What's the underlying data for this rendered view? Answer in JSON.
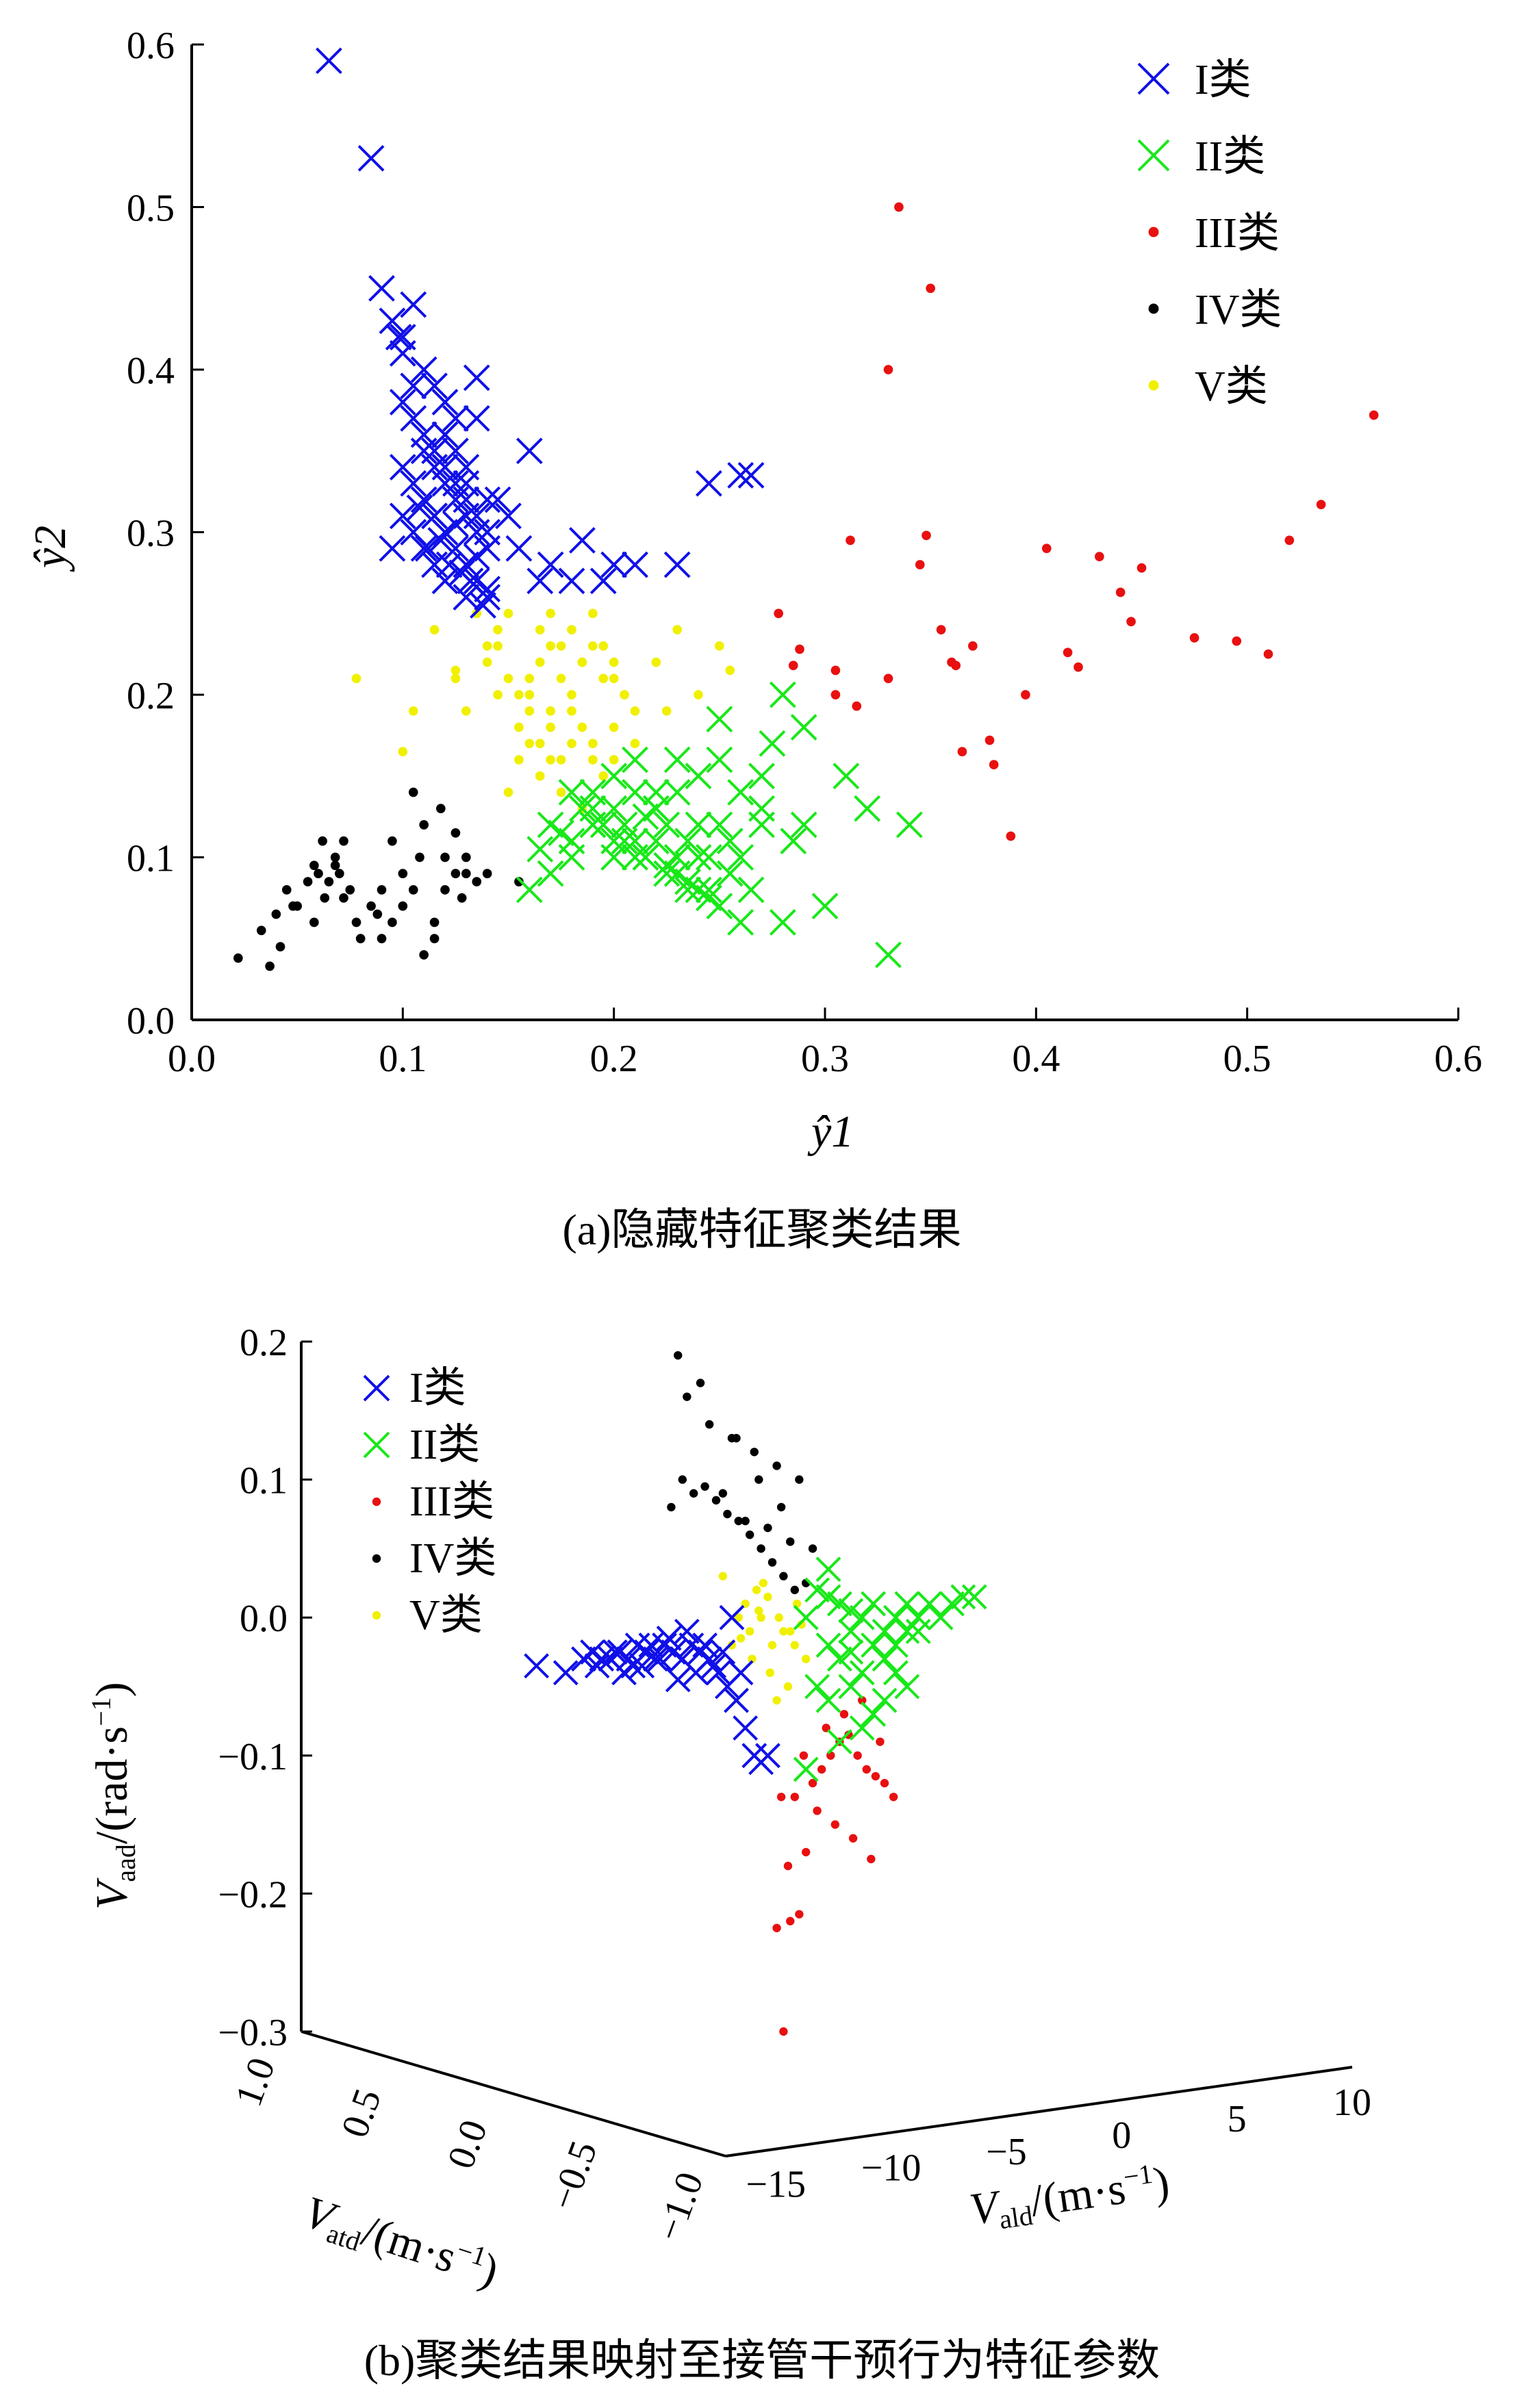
{
  "series_colors": {
    "I": "#1010e8",
    "II": "#18e818",
    "III": "#e81010",
    "IV": "#000000",
    "V": "#f0f000"
  },
  "chart_data": [
    {
      "type": "scatter",
      "caption": "(a)隐藏特征聚类结果",
      "xlabel": "ŷ1",
      "ylabel": "ŷ2",
      "xlim": [
        0.0,
        0.6
      ],
      "ylim": [
        0.0,
        0.6
      ],
      "xticks": [
        "0.0",
        "0.1",
        "0.2",
        "0.3",
        "0.4",
        "0.5",
        "0.6"
      ],
      "yticks": [
        "0.0",
        "0.1",
        "0.2",
        "0.3",
        "0.4",
        "0.5",
        "0.6"
      ],
      "legend_position": "top-right",
      "series": [
        {
          "name": "I类",
          "marker": "x",
          "x": [
            0.065,
            0.085,
            0.09,
            0.095,
            0.1,
            0.1,
            0.105,
            0.11,
            0.115,
            0.12,
            0.12,
            0.125,
            0.125,
            0.13,
            0.13,
            0.135,
            0.135,
            0.14,
            0.14,
            0.1,
            0.105,
            0.11,
            0.115,
            0.12,
            0.125,
            0.13,
            0.135,
            0.14,
            0.11,
            0.115,
            0.12,
            0.125,
            0.13,
            0.135,
            0.095,
            0.1,
            0.105,
            0.11,
            0.115,
            0.12,
            0.1,
            0.105,
            0.11,
            0.115,
            0.12,
            0.125,
            0.13,
            0.135,
            0.14,
            0.16,
            0.17,
            0.18,
            0.2,
            0.21,
            0.23,
            0.245,
            0.26,
            0.265,
            0.155,
            0.165,
            0.185,
            0.195,
            0.145,
            0.15,
            0.12,
            0.13,
            0.14,
            0.105,
            0.125,
            0.135,
            0.115,
            0.108,
            0.118,
            0.128,
            0.138,
            0.098,
            0.112,
            0.122,
            0.132
          ],
          "y": [
            0.59,
            0.53,
            0.45,
            0.43,
            0.42,
            0.41,
            0.44,
            0.4,
            0.39,
            0.38,
            0.36,
            0.37,
            0.35,
            0.34,
            0.33,
            0.395,
            0.37,
            0.32,
            0.3,
            0.34,
            0.33,
            0.32,
            0.31,
            0.3,
            0.29,
            0.28,
            0.27,
            0.26,
            0.35,
            0.34,
            0.33,
            0.32,
            0.31,
            0.3,
            0.29,
            0.31,
            0.3,
            0.29,
            0.28,
            0.27,
            0.38,
            0.37,
            0.36,
            0.35,
            0.34,
            0.33,
            0.32,
            0.31,
            0.29,
            0.35,
            0.28,
            0.27,
            0.28,
            0.28,
            0.28,
            0.33,
            0.335,
            0.335,
            0.29,
            0.27,
            0.295,
            0.27,
            0.32,
            0.31,
            0.36,
            0.26,
            0.265,
            0.39,
            0.305,
            0.285,
            0.31,
            0.315,
            0.295,
            0.275,
            0.255,
            0.42,
            0.29,
            0.28,
            0.27
          ]
        },
        {
          "name": "II类",
          "marker": "x",
          "x": [
            0.16,
            0.17,
            0.18,
            0.19,
            0.2,
            0.205,
            0.21,
            0.215,
            0.22,
            0.225,
            0.23,
            0.235,
            0.24,
            0.245,
            0.25,
            0.255,
            0.26,
            0.265,
            0.27,
            0.275,
            0.28,
            0.285,
            0.29,
            0.3,
            0.31,
            0.32,
            0.33,
            0.34,
            0.17,
            0.18,
            0.19,
            0.2,
            0.21,
            0.22,
            0.23,
            0.24,
            0.25,
            0.195,
            0.205,
            0.215,
            0.225,
            0.235,
            0.245,
            0.255,
            0.18,
            0.19,
            0.2,
            0.21,
            0.22,
            0.23,
            0.24,
            0.25,
            0.26,
            0.27,
            0.28,
            0.29,
            0.25,
            0.26,
            0.27,
            0.23,
            0.24,
            0.21,
            0.22,
            0.2,
            0.19,
            0.185,
            0.175,
            0.165,
            0.215,
            0.225,
            0.235,
            0.245
          ],
          "y": [
            0.08,
            0.12,
            0.11,
            0.14,
            0.13,
            0.12,
            0.11,
            0.1,
            0.13,
            0.12,
            0.09,
            0.11,
            0.1,
            0.08,
            0.07,
            0.09,
            0.06,
            0.08,
            0.15,
            0.17,
            0.2,
            0.11,
            0.12,
            0.07,
            0.15,
            0.13,
            0.04,
            0.12,
            0.09,
            0.1,
            0.13,
            0.15,
            0.16,
            0.14,
            0.1,
            0.08,
            0.185,
            0.12,
            0.11,
            0.1,
            0.09,
            0.08,
            0.1,
            0.11,
            0.14,
            0.12,
            0.11,
            0.1,
            0.13,
            0.14,
            0.15,
            0.16,
            0.14,
            0.13,
            0.06,
            0.18,
            0.12,
            0.1,
            0.12,
            0.16,
            0.12,
            0.14,
            0.11,
            0.1,
            0.12,
            0.13,
            0.115,
            0.105,
            0.125,
            0.095,
            0.085,
            0.075
          ]
        },
        {
          "name": "III类",
          "marker": "dot",
          "x": [
            0.335,
            0.35,
            0.33,
            0.56,
            0.535,
            0.52,
            0.51,
            0.495,
            0.475,
            0.45,
            0.445,
            0.44,
            0.43,
            0.42,
            0.415,
            0.405,
            0.395,
            0.388,
            0.38,
            0.378,
            0.37,
            0.365,
            0.362,
            0.36,
            0.355,
            0.348,
            0.345,
            0.33,
            0.315,
            0.312,
            0.305,
            0.305,
            0.288,
            0.285,
            0.278
          ],
          "y": [
            0.5,
            0.45,
            0.4,
            0.372,
            0.317,
            0.295,
            0.225,
            0.233,
            0.235,
            0.278,
            0.245,
            0.263,
            0.285,
            0.217,
            0.226,
            0.29,
            0.2,
            0.113,
            0.157,
            0.172,
            0.23,
            0.165,
            0.218,
            0.22,
            0.24,
            0.298,
            0.28,
            0.21,
            0.193,
            0.295,
            0.2,
            0.215,
            0.228,
            0.218,
            0.25
          ]
        },
        {
          "name": "IV类",
          "marker": "dot",
          "x": [
            0.022,
            0.037,
            0.04,
            0.045,
            0.05,
            0.055,
            0.058,
            0.06,
            0.062,
            0.065,
            0.068,
            0.07,
            0.072,
            0.075,
            0.078,
            0.08,
            0.085,
            0.09,
            0.095,
            0.1,
            0.105,
            0.11,
            0.115,
            0.12,
            0.125,
            0.13,
            0.135,
            0.105,
            0.11,
            0.12,
            0.125,
            0.13,
            0.115,
            0.095,
            0.088,
            0.072,
            0.063,
            0.058,
            0.048,
            0.042,
            0.033,
            0.068,
            0.118,
            0.128,
            0.14,
            0.155,
            0.108,
            0.1,
            0.09
          ],
          "y": [
            0.038,
            0.033,
            0.065,
            0.08,
            0.07,
            0.085,
            0.095,
            0.09,
            0.11,
            0.085,
            0.1,
            0.09,
            0.075,
            0.08,
            0.06,
            0.05,
            0.07,
            0.05,
            0.06,
            0.07,
            0.08,
            0.04,
            0.06,
            0.08,
            0.09,
            0.1,
            0.085,
            0.14,
            0.12,
            0.1,
            0.115,
            0.09,
            0.05,
            0.11,
            0.065,
            0.11,
            0.075,
            0.06,
            0.07,
            0.045,
            0.055,
            0.095,
            0.13,
            0.075,
            0.09,
            0.085,
            0.1,
            0.09,
            0.08
          ]
        },
        {
          "name": "V类",
          "marker": "dot",
          "x": [
            0.078,
            0.1,
            0.115,
            0.125,
            0.13,
            0.14,
            0.145,
            0.15,
            0.155,
            0.16,
            0.165,
            0.17,
            0.175,
            0.18,
            0.185,
            0.19,
            0.195,
            0.2,
            0.205,
            0.21,
            0.22,
            0.225,
            0.23,
            0.24,
            0.25,
            0.255,
            0.16,
            0.17,
            0.18,
            0.19,
            0.2,
            0.15,
            0.155,
            0.165,
            0.175,
            0.185,
            0.195,
            0.145,
            0.16,
            0.17,
            0.18,
            0.19,
            0.2,
            0.21,
            0.14,
            0.15,
            0.16,
            0.17,
            0.155,
            0.165,
            0.175,
            0.185,
            0.165,
            0.175,
            0.185,
            0.195,
            0.205,
            0.17,
            0.18,
            0.19,
            0.2,
            0.135,
            0.145,
            0.105,
            0.125
          ],
          "y": [
            0.21,
            0.165,
            0.24,
            0.21,
            0.19,
            0.23,
            0.24,
            0.25,
            0.2,
            0.21,
            0.22,
            0.23,
            0.21,
            0.2,
            0.22,
            0.25,
            0.23,
            0.21,
            0.2,
            0.19,
            0.22,
            0.19,
            0.24,
            0.2,
            0.23,
            0.215,
            0.19,
            0.18,
            0.17,
            0.16,
            0.18,
            0.14,
            0.16,
            0.15,
            0.14,
            0.13,
            0.15,
            0.2,
            0.17,
            0.16,
            0.19,
            0.17,
            0.16,
            0.17,
            0.22,
            0.21,
            0.2,
            0.19,
            0.18,
            0.17,
            0.16,
            0.18,
            0.24,
            0.23,
            0.22,
            0.21,
            0.2,
            0.25,
            0.24,
            0.23,
            0.22,
            0.25,
            0.23,
            0.19,
            0.215
          ]
        }
      ]
    },
    {
      "type": "scatter",
      "caption": "(b)聚类结果映射至接管干预行为特征参数",
      "xlabel_main": "V",
      "xlabel_sub": "ald",
      "xlabel_unit": "/(m·s",
      "xlabel_exp": "−1",
      "xlabel_close": ")",
      "ylabel_main": "V",
      "ylabel_sub": "atd",
      "ylabel_unit": "/(m·s",
      "ylabel_exp": "−1",
      "ylabel_close": ")",
      "zlabel_main": "V",
      "zlabel_sub": "aad",
      "zlabel_unit": "/(rad·s",
      "zlabel_exp": "−1",
      "zlabel_close": ")",
      "xlim": [
        -15,
        10
      ],
      "ylim": [
        -1.0,
        1.0
      ],
      "zlim": [
        -0.3,
        0.2
      ],
      "xticks": [
        "−15",
        "−10",
        "−5",
        "0",
        "5",
        "10"
      ],
      "yticks": [
        "1.0",
        "0.5",
        "0.0",
        "−0.5",
        "−1.0"
      ],
      "zticks": [
        "0.2",
        "0.1",
        "0.0",
        "−0.1",
        "−0.2",
        "−0.3"
      ],
      "legend_position": "top-left",
      "series": [
        {
          "name": "I类",
          "marker": "x",
          "x": [
            -15.5,
            -14.2,
            -13.4,
            -13.0,
            -12.6,
            -12.2,
            -11.8,
            -11.4,
            -11.0,
            -10.6,
            -10.2,
            -9.8,
            -9.4,
            -9.0,
            -8.6,
            -8.2,
            -7.8,
            -7.4,
            -7.0,
            -6.6,
            -6.2,
            -5.8,
            -5.5,
            -5.2,
            -12.8,
            -12.0,
            -11.2,
            -10.4,
            -9.6,
            -8.8,
            -8.0,
            -7.2,
            -6.4,
            -11.6,
            -10.8,
            -10.0,
            -9.2,
            -8.4,
            -7.6,
            -6.8
          ],
          "z": [
            -0.035,
            -0.04,
            -0.03,
            -0.025,
            -0.03,
            -0.03,
            -0.025,
            -0.03,
            -0.02,
            -0.025,
            -0.03,
            -0.02,
            -0.025,
            -0.03,
            -0.02,
            -0.025,
            -0.03,
            -0.04,
            -0.05,
            -0.06,
            -0.08,
            -0.1,
            -0.105,
            -0.1,
            -0.035,
            -0.025,
            -0.035,
            -0.02,
            -0.015,
            -0.01,
            -0.02,
            -0.025,
            -0.04,
            -0.04,
            -0.035,
            -0.03,
            -0.045,
            -0.04,
            -0.035,
            0.0
          ]
        },
        {
          "name": "II类",
          "marker": "x",
          "x": [
            -3.5,
            -3.0,
            -2.5,
            -2.0,
            -1.5,
            -1.0,
            -0.5,
            0.0,
            0.5,
            1.0,
            1.5,
            2.0,
            2.5,
            3.0,
            3.5,
            4.0,
            -2.5,
            -2.0,
            -1.5,
            -1.0,
            -0.5,
            0.0,
            0.5,
            1.0,
            -3.0,
            -2.5,
            -1.5,
            -0.5,
            0.5,
            1.5,
            -3.5,
            -2.0,
            -1.0,
            0.0,
            1.0,
            -1.5,
            -2.5
          ],
          "z": [
            0.0,
            0.02,
            0.035,
            0.01,
            -0.01,
            0.0,
            0.01,
            -0.01,
            0.0,
            0.01,
            0.0,
            0.01,
            0.0,
            0.01,
            0.015,
            0.015,
            -0.02,
            -0.03,
            -0.025,
            -0.04,
            -0.02,
            -0.03,
            -0.02,
            -0.01,
            -0.05,
            -0.06,
            -0.05,
            -0.07,
            -0.04,
            -0.01,
            -0.11,
            -0.09,
            -0.08,
            -0.06,
            -0.05,
            0.005,
            0.015
          ]
        },
        {
          "name": "III类",
          "marker": "dot",
          "x": [
            -4.5,
            -4.2,
            -3.8,
            -3.5,
            -3.2,
            -2.8,
            -2.4,
            -2.0,
            -1.6,
            -1.2,
            -0.8,
            -0.4,
            0.0,
            0.4,
            -4.0,
            -3.0,
            -2.2,
            -1.4,
            -0.6,
            -4.6,
            -4.3,
            -4.8,
            -3.6,
            -2.6,
            -1.8,
            -1.0,
            -0.2
          ],
          "z": [
            -0.3,
            -0.22,
            -0.215,
            -0.17,
            -0.12,
            -0.11,
            -0.1,
            -0.09,
            -0.085,
            -0.1,
            -0.11,
            -0.115,
            -0.12,
            -0.13,
            -0.13,
            -0.14,
            -0.15,
            -0.16,
            -0.175,
            -0.13,
            -0.18,
            -0.225,
            -0.1,
            -0.08,
            -0.07,
            -0.06,
            -0.09
          ]
        },
        {
          "name": "IV类",
          "marker": "dot",
          "x": [
            -9.5,
            -8.5,
            -7.5,
            -7.0,
            -6.5,
            -6.0,
            -5.5,
            -5.0,
            -4.5,
            -4.0,
            -3.5,
            -9.0,
            -8.0,
            -7.2,
            -6.2,
            -5.2,
            -4.2,
            -3.2,
            -8.8,
            -7.8,
            -6.8,
            -5.8,
            -4.8,
            -3.8,
            -9.2,
            -8.2,
            -6.6,
            -5.6,
            -4.6
          ],
          "z": [
            0.08,
            0.09,
            0.085,
            0.075,
            0.07,
            0.06,
            0.05,
            0.04,
            0.03,
            0.02,
            0.025,
            0.1,
            0.095,
            0.09,
            0.07,
            0.065,
            0.055,
            0.05,
            0.16,
            0.14,
            0.13,
            0.12,
            0.11,
            0.1,
            0.19,
            0.17,
            0.13,
            0.1,
            0.08
          ]
        },
        {
          "name": "V类",
          "marker": "dot",
          "x": [
            -6.5,
            -6.0,
            -5.5,
            -5.0,
            -4.5,
            -4.0,
            -3.5,
            -6.2,
            -5.7,
            -5.2,
            -4.7,
            -4.2,
            -3.7,
            -6.8,
            -5.9,
            -5.1,
            -4.3,
            -3.9,
            -5.4,
            -4.8,
            -7.2,
            -6.4,
            -5.6
          ],
          "z": [
            0.0,
            -0.01,
            0.0,
            -0.02,
            -0.01,
            -0.02,
            -0.03,
            0.01,
            0.02,
            0.015,
            0.0,
            -0.01,
            -0.005,
            -0.02,
            -0.03,
            -0.04,
            -0.05,
            0.01,
            0.025,
            -0.06,
            0.03,
            -0.015,
            0.005
          ]
        }
      ]
    }
  ]
}
